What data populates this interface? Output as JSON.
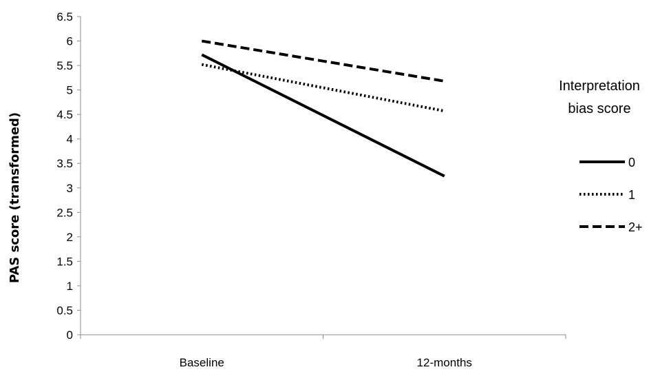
{
  "chart_data": {
    "type": "line",
    "title": "",
    "xlabel": "",
    "ylabel": "PAS score (transformed)",
    "x": [
      "Baseline",
      "12-months"
    ],
    "ylim": [
      0,
      6.5
    ],
    "y_ticks": [
      "0",
      "0.5",
      "1",
      "1.5",
      "2",
      "2.5",
      "3",
      "3.5",
      "4",
      "4.5",
      "5",
      "5.5",
      "6",
      "6.5"
    ],
    "grid": false,
    "legend_title_lines": [
      "Interpretation",
      "bias score"
    ],
    "legend_position": "right",
    "series": [
      {
        "name": "0",
        "values": [
          5.72,
          3.24
        ],
        "style": "solid",
        "color": "#000000"
      },
      {
        "name": "1",
        "values": [
          5.52,
          4.57
        ],
        "style": "dotted",
        "color": "#000000"
      },
      {
        "name": "2+",
        "values": [
          6.0,
          5.18
        ],
        "style": "dashed",
        "color": "#000000"
      }
    ]
  }
}
